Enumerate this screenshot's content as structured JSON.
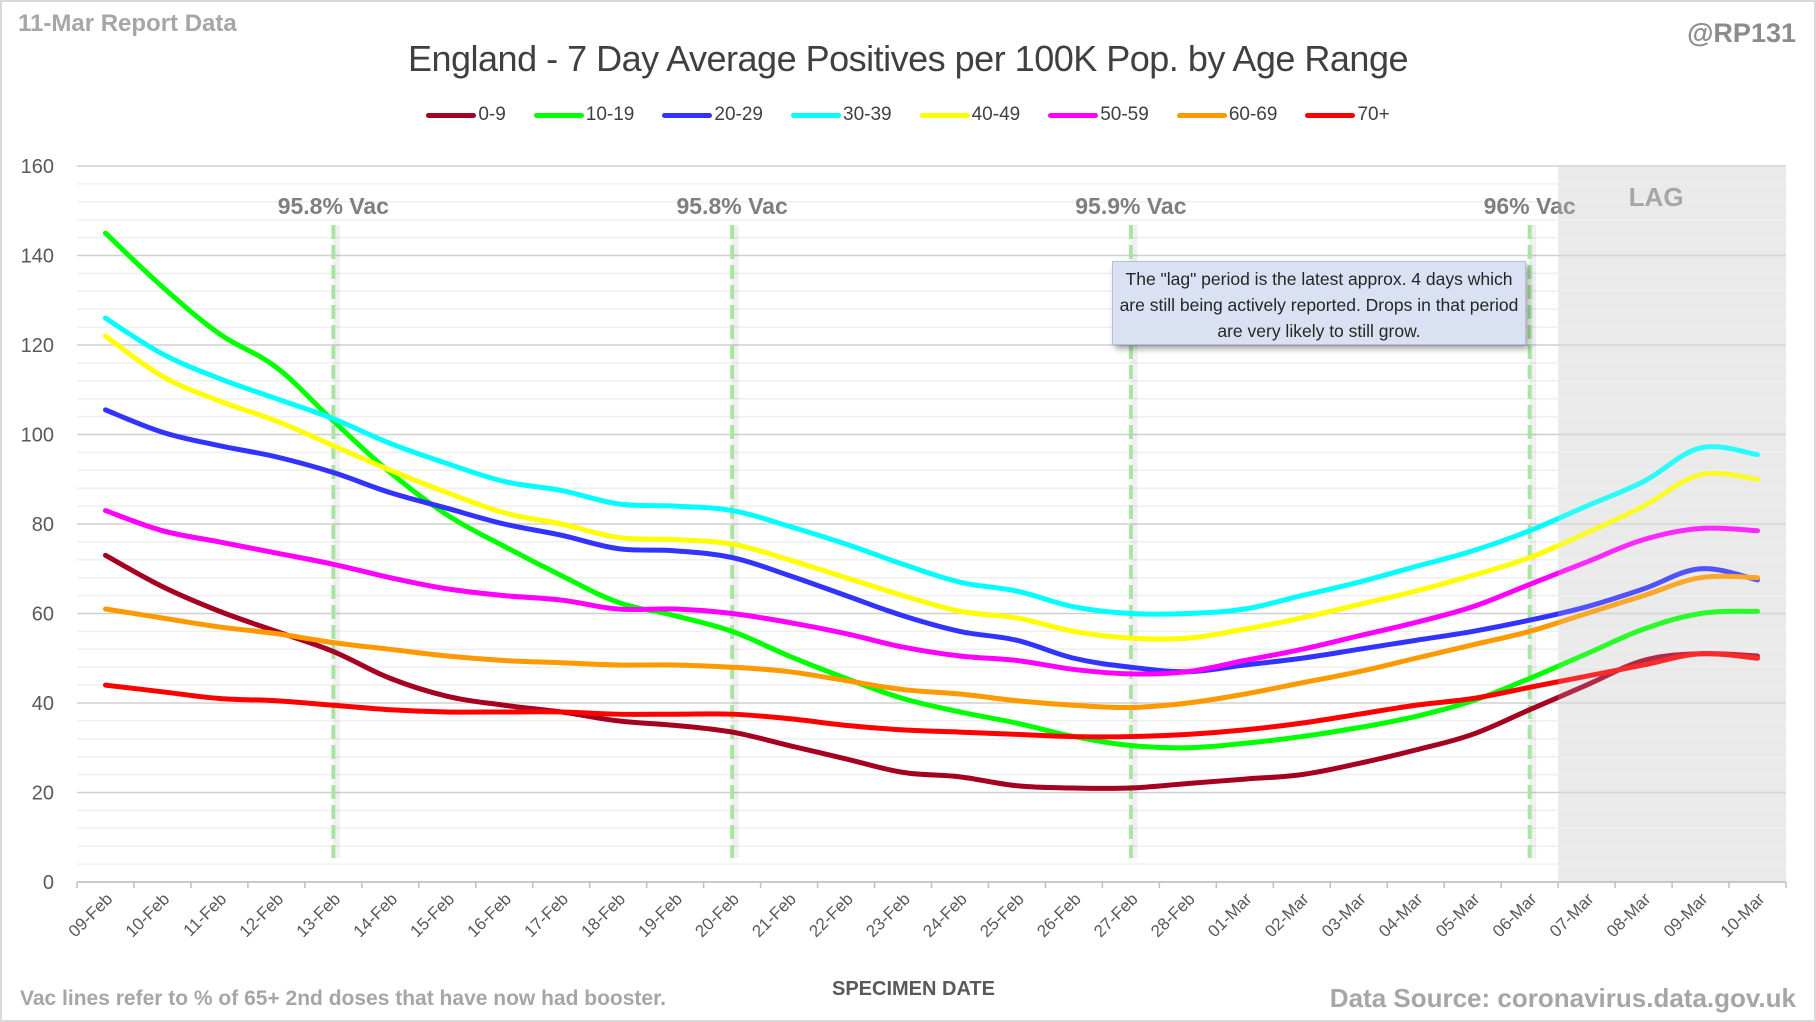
{
  "header": {
    "report_label": "11-Mar Report Data",
    "handle": "@RP131"
  },
  "footer": {
    "footnote": "Vac lines refer to % of 65+ 2nd doses that have now had booster.",
    "source": "Data Source: coronavirus.data.gov.uk"
  },
  "note_box": {
    "text": "The \"lag\" period is the latest approx. 4 days which are still being actively reported. Drops in that period are very likely to still grow."
  },
  "lag_label": "LAG",
  "chart_data": {
    "type": "line",
    "title": "England - 7 Day Average Positives per 100K Pop. by Age Range",
    "xlabel": "SPECIMEN DATE",
    "ylabel": "",
    "ylim": [
      0,
      160
    ],
    "yticks": [
      0,
      20,
      40,
      60,
      80,
      100,
      120,
      140,
      160
    ],
    "grid": true,
    "legend_position": "top-center",
    "x": [
      "09-Feb",
      "10-Feb",
      "11-Feb",
      "12-Feb",
      "13-Feb",
      "14-Feb",
      "15-Feb",
      "16-Feb",
      "17-Feb",
      "18-Feb",
      "19-Feb",
      "20-Feb",
      "21-Feb",
      "22-Feb",
      "23-Feb",
      "24-Feb",
      "25-Feb",
      "26-Feb",
      "27-Feb",
      "28-Feb",
      "01-Mar",
      "02-Mar",
      "03-Mar",
      "04-Mar",
      "05-Mar",
      "06-Mar",
      "07-Mar",
      "08-Mar",
      "09-Mar",
      "10-Mar"
    ],
    "series": [
      {
        "name": "0-9",
        "color": "#a50021",
        "values": [
          73,
          66,
          60.5,
          56,
          51.5,
          45.5,
          41.5,
          39.5,
          38,
          36,
          35,
          33.5,
          30.5,
          27.5,
          24.5,
          23.5,
          21.5,
          21,
          21,
          22,
          23,
          24,
          26.5,
          29.5,
          33,
          38.5,
          44,
          49.5,
          51,
          50.5
        ]
      },
      {
        "name": "10-19",
        "color": "#00ff00",
        "values": [
          145,
          133,
          122.5,
          115,
          103,
          91.5,
          82,
          75,
          68.5,
          62.5,
          59.5,
          56,
          50.5,
          45.5,
          41,
          38,
          35.5,
          32.5,
          30.5,
          30,
          31,
          32.5,
          34.5,
          37,
          40.5,
          45.5,
          51,
          56.5,
          60,
          60.5
        ]
      },
      {
        "name": "20-29",
        "color": "#3333ff",
        "values": [
          105.5,
          100.5,
          97.5,
          95,
          91.5,
          87,
          83.5,
          80,
          77.5,
          74.5,
          74,
          72.5,
          68.5,
          64,
          59.5,
          56,
          54,
          50,
          48,
          47,
          48.5,
          50,
          52,
          54,
          56,
          58.5,
          61.5,
          65.5,
          70,
          67.5
        ]
      },
      {
        "name": "30-39",
        "color": "#00ffff",
        "values": [
          126,
          118,
          112.5,
          108,
          103.5,
          98,
          93.5,
          89.5,
          87.5,
          84.5,
          84,
          83,
          79.5,
          75.5,
          71,
          67,
          65,
          61.5,
          60,
          60,
          61,
          64,
          67,
          70.5,
          74,
          78.5,
          84,
          89.5,
          97,
          95.5
        ]
      },
      {
        "name": "40-49",
        "color": "#ffff00",
        "values": [
          122,
          113,
          107.5,
          103,
          97.5,
          92,
          87,
          82.5,
          80,
          77,
          76.5,
          75.5,
          72,
          68,
          64,
          60.5,
          59,
          56,
          54.5,
          54.5,
          56.5,
          59,
          62,
          65,
          68.5,
          72.5,
          78,
          84,
          91,
          90
        ]
      },
      {
        "name": "50-59",
        "color": "#ff00ff",
        "values": [
          83,
          78.5,
          76,
          73.5,
          71,
          68,
          65.5,
          64,
          63,
          61,
          61,
          60,
          58,
          55.5,
          52.5,
          50.5,
          49.5,
          47.5,
          46.5,
          47,
          49.5,
          52,
          55,
          58,
          61.5,
          66.5,
          71.5,
          76.5,
          79,
          78.5
        ]
      },
      {
        "name": "60-69",
        "color": "#ff9900",
        "values": [
          61,
          59,
          57,
          55.5,
          53.5,
          52,
          50.5,
          49.5,
          49,
          48.5,
          48.5,
          48,
          47,
          45,
          43,
          42,
          40.5,
          39.5,
          39,
          40,
          42,
          44.5,
          47,
          50,
          53,
          56,
          60,
          64,
          68,
          68
        ]
      },
      {
        "name": "70+",
        "color": "#ff0000",
        "values": [
          44,
          42.5,
          41,
          40.5,
          39.5,
          38.5,
          38,
          38,
          38,
          37.5,
          37.5,
          37.5,
          36.5,
          35,
          34,
          33.5,
          33,
          32.5,
          32.5,
          33,
          34,
          35.5,
          37.5,
          39.5,
          41,
          43.5,
          46,
          48.5,
          51,
          50
        ]
      }
    ],
    "vac_lines": [
      {
        "date": "13-Feb",
        "label": "95.8% Vac"
      },
      {
        "date": "20-Feb",
        "label": "95.8% Vac"
      },
      {
        "date": "27-Feb",
        "label": "95.9% Vac"
      },
      {
        "date": "06-Mar",
        "label": "96% Vac"
      }
    ],
    "lag_period": {
      "from": "07-Mar",
      "to": "10-Mar",
      "label": "LAG"
    }
  }
}
